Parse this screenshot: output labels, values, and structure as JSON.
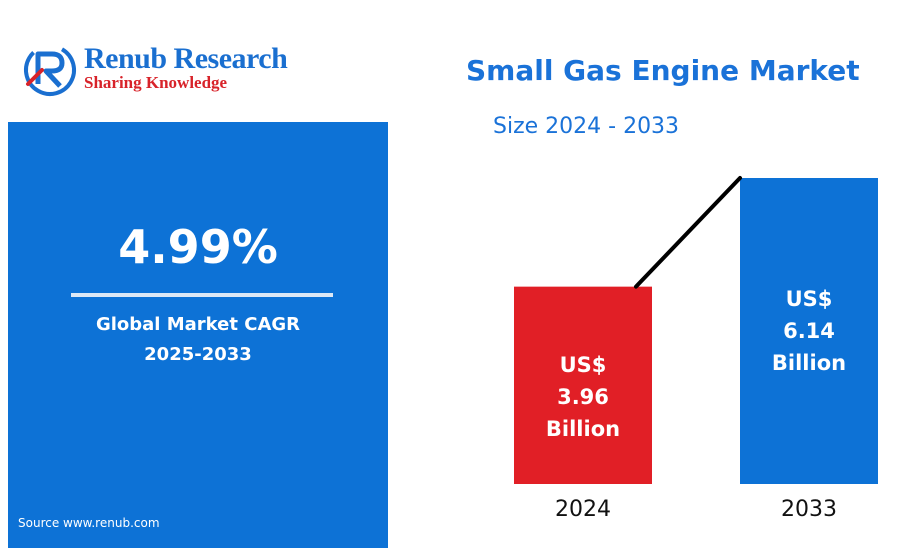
{
  "logo": {
    "name": "Renub Research",
    "tagline": "Sharing Knowledge"
  },
  "cagr": {
    "value": "4.99%",
    "label_line1": "Global Market CAGR",
    "label_line2": "2025-2033"
  },
  "source": "Source  www.renub.com",
  "colors": {
    "brand_blue": "#1a72d8",
    "panel_blue": "#0d72d6",
    "bar_red": "#e11f26",
    "bar_blue": "#0d72d6",
    "logo_red": "#d8232a"
  },
  "chart_data": {
    "type": "bar",
    "title": "Small Gas Engine Market",
    "subtitle": "Size 2024 - 2033",
    "categories": [
      "2024",
      "2033"
    ],
    "values": [
      3.96,
      6.14
    ],
    "value_labels": [
      [
        "US$",
        "3.96",
        "Billion"
      ],
      [
        "US$",
        "6.14",
        "Billion"
      ]
    ],
    "bar_colors": [
      "#e11f26",
      "#0d72d6"
    ],
    "trend_line": true,
    "grid": false,
    "legend": false
  }
}
